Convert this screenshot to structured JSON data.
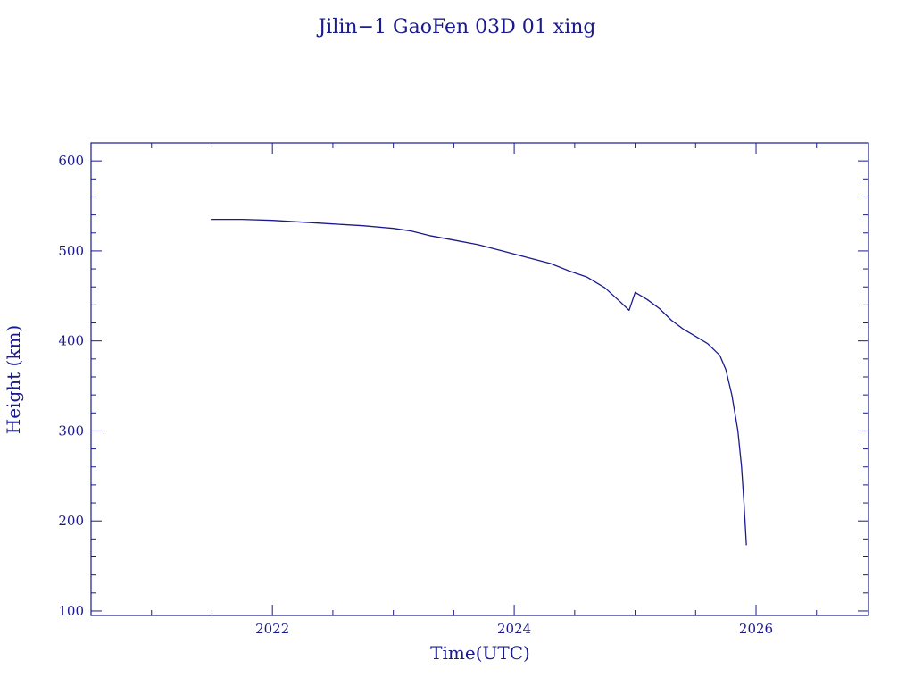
{
  "chart_data": {
    "type": "line",
    "title": "Jilin−1 GaoFen 03D 01 xing",
    "xlabel": "Time(UTC)",
    "ylabel": "Height (km)",
    "xlim": [
      2020.5,
      2026.93
    ],
    "ylim": [
      95,
      620
    ],
    "x_ticks": [
      2022,
      2024,
      2026
    ],
    "x_tick_labels": [
      "2022",
      "2024",
      "2026"
    ],
    "y_ticks": [
      100,
      200,
      300,
      400,
      500,
      600
    ],
    "y_tick_labels": [
      "100",
      "200",
      "300",
      "400",
      "500",
      "600"
    ],
    "grid": false,
    "series": [
      {
        "x": [
          2021.49,
          2021.75,
          2022.0,
          2022.25,
          2022.5,
          2022.75,
          2023.0,
          2023.15,
          2023.3,
          2023.5,
          2023.7,
          2023.9,
          2024.1,
          2024.3,
          2024.45,
          2024.6,
          2024.75,
          2024.88,
          2024.95,
          2025.0,
          2025.1,
          2025.2,
          2025.3,
          2025.4,
          2025.5,
          2025.6,
          2025.7,
          2025.75,
          2025.8,
          2025.85,
          2025.88,
          2025.9,
          2025.92
        ],
        "y": [
          535,
          535,
          534,
          532,
          530,
          528,
          525,
          522,
          517,
          512,
          507,
          500,
          493,
          486,
          478,
          471,
          459,
          443,
          434,
          454,
          446,
          436,
          423,
          413,
          405,
          397,
          384,
          368,
          340,
          300,
          260,
          220,
          173
        ]
      }
    ]
  }
}
